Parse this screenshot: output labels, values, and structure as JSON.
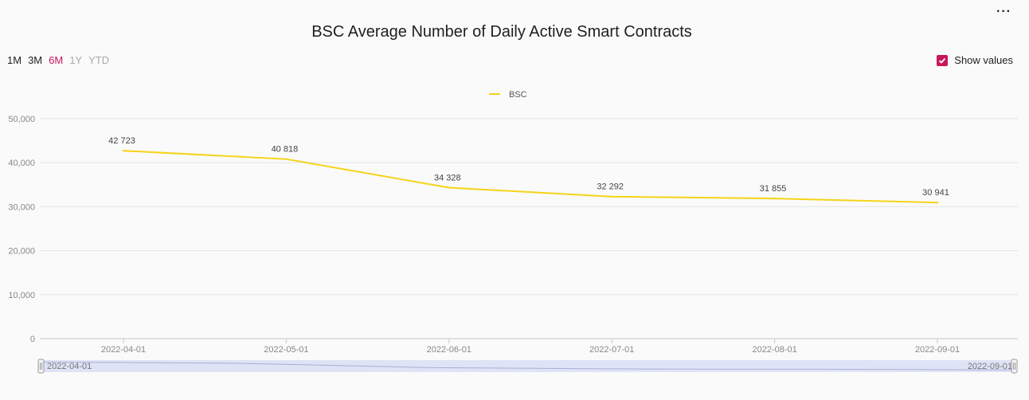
{
  "title": "BSC Average Number of Daily Active Smart Contracts",
  "menu_icon": "more-icon",
  "ranges": [
    {
      "label": "1M",
      "state": "dark"
    },
    {
      "label": "3M",
      "state": "dark"
    },
    {
      "label": "6M",
      "state": "active"
    },
    {
      "label": "1Y",
      "state": "light"
    },
    {
      "label": "YTD",
      "state": "light"
    }
  ],
  "show_values": {
    "label": "Show values",
    "checked": true
  },
  "colors": {
    "line": "#f5d418",
    "accent": "#c8175d"
  },
  "chart_data": {
    "type": "line",
    "title": "BSC Average Number of Daily Active Smart Contracts",
    "xlabel": "",
    "ylabel": "",
    "ylim": [
      0,
      50000
    ],
    "yticks": [
      "0",
      "10,000",
      "20,000",
      "30,000",
      "40,000",
      "50,000"
    ],
    "yticks_values": [
      0,
      10000,
      20000,
      30000,
      40000,
      50000
    ],
    "x": [
      "2022-04-01",
      "2022-05-01",
      "2022-06-01",
      "2022-07-01",
      "2022-08-01",
      "2022-09-01"
    ],
    "series": [
      {
        "name": "BSC",
        "values": [
          42723,
          40818,
          34328,
          32292,
          31855,
          30941
        ],
        "value_labels": [
          "42 723",
          "40 818",
          "34 328",
          "32 292",
          "31 855",
          "30 941"
        ]
      }
    ],
    "legend": "top-center",
    "grid": true,
    "navigator": {
      "start": "2022-04-01",
      "end": "2022-09-01"
    }
  }
}
